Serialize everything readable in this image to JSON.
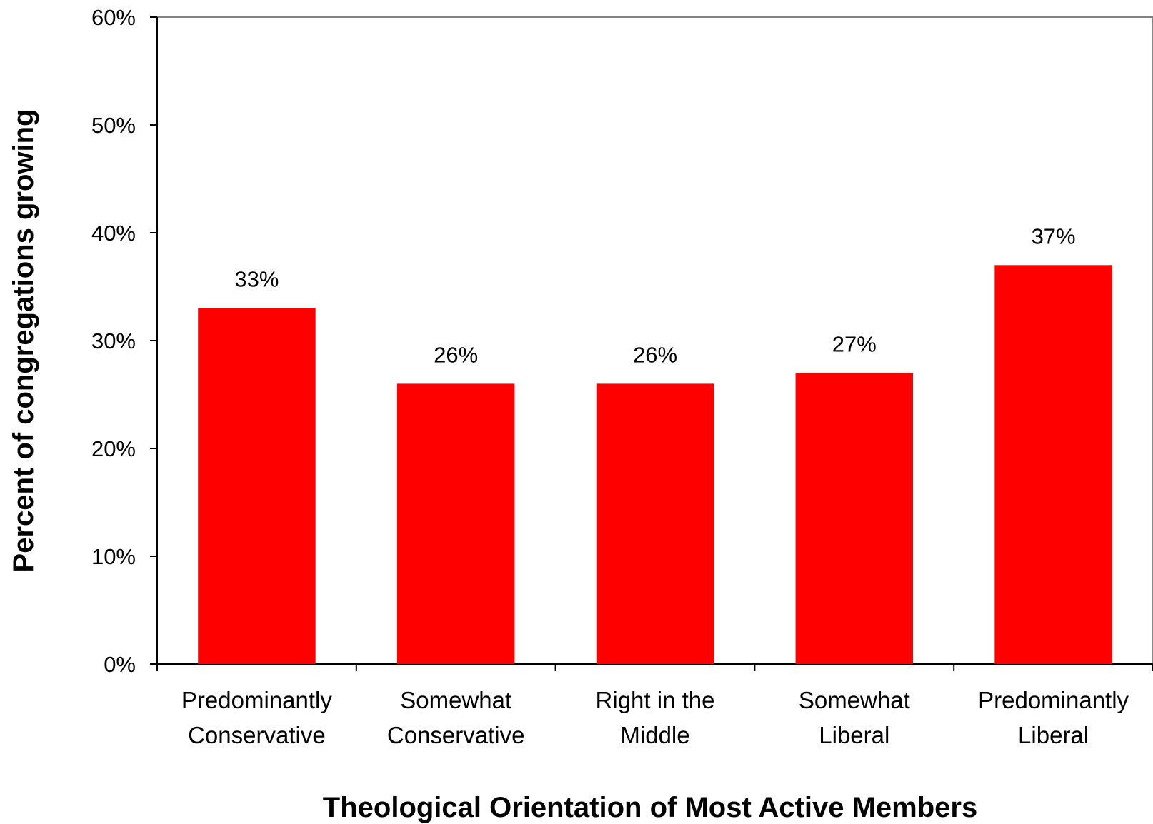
{
  "chart_data": {
    "type": "bar",
    "title": "",
    "xlabel": "Theological Orientation of Most Active Members",
    "ylabel": "Percent of congregations growing",
    "categories": [
      [
        "Predominantly",
        "Conservative"
      ],
      [
        "Somewhat",
        "Conservative"
      ],
      [
        "Right in the",
        "Middle"
      ],
      [
        "Somewhat",
        "Liberal"
      ],
      [
        "Predominantly",
        "Liberal"
      ]
    ],
    "values": [
      33,
      26,
      26,
      27,
      37
    ],
    "data_labels": [
      "33%",
      "26%",
      "26%",
      "27%",
      "37%"
    ],
    "ylim": [
      0,
      60
    ],
    "y_ticks": [
      0,
      10,
      20,
      30,
      40,
      50,
      60
    ],
    "y_tick_labels": [
      "0%",
      "10%",
      "20%",
      "30%",
      "40%",
      "50%",
      "60%"
    ],
    "grid": false,
    "legend": "none",
    "bar_color": "#ff0000"
  }
}
